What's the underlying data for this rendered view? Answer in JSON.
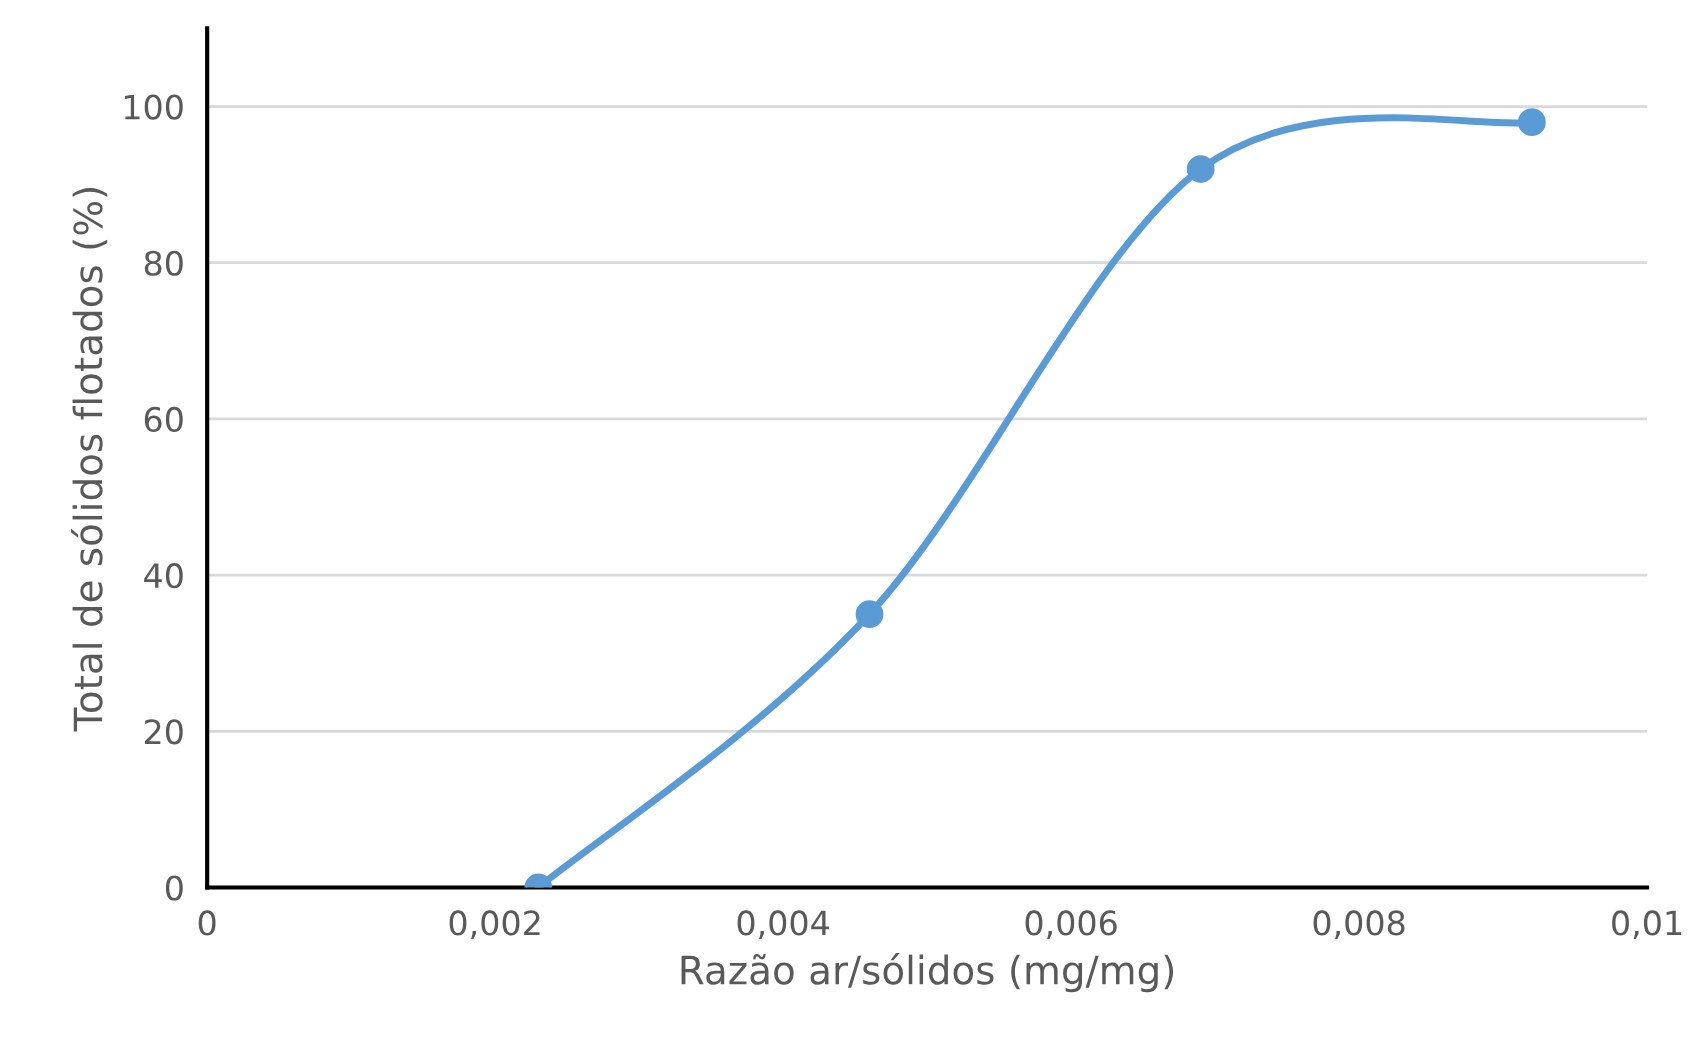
{
  "chart_data": {
    "type": "line",
    "xlabel": "Razão ar/sólidos (mg/mg)",
    "ylabel": "Total de sólidos flotados (%)",
    "x": [
      0.0023,
      0.0046,
      0.0069,
      0.0092
    ],
    "series": [
      {
        "color": "#5b9bd5",
        "values": [
          0,
          35,
          92,
          98
        ]
      }
    ],
    "xlim": [
      0,
      0.01
    ],
    "xticks": [
      0,
      {
        "value": 0.002,
        "label": "0,002"
      },
      {
        "value": 0.004,
        "label": "0,004"
      },
      {
        "value": 0.006,
        "label": "0,006"
      },
      {
        "value": 0.008,
        "label": "0,008"
      },
      {
        "value": 0.01,
        "label": "0,01"
      }
    ],
    "ylim": [
      0,
      110
    ],
    "yticks": [
      0,
      20,
      40,
      60,
      80,
      100
    ],
    "grid": "y",
    "marker": "circle",
    "line_style": "solid",
    "legend": false
  }
}
